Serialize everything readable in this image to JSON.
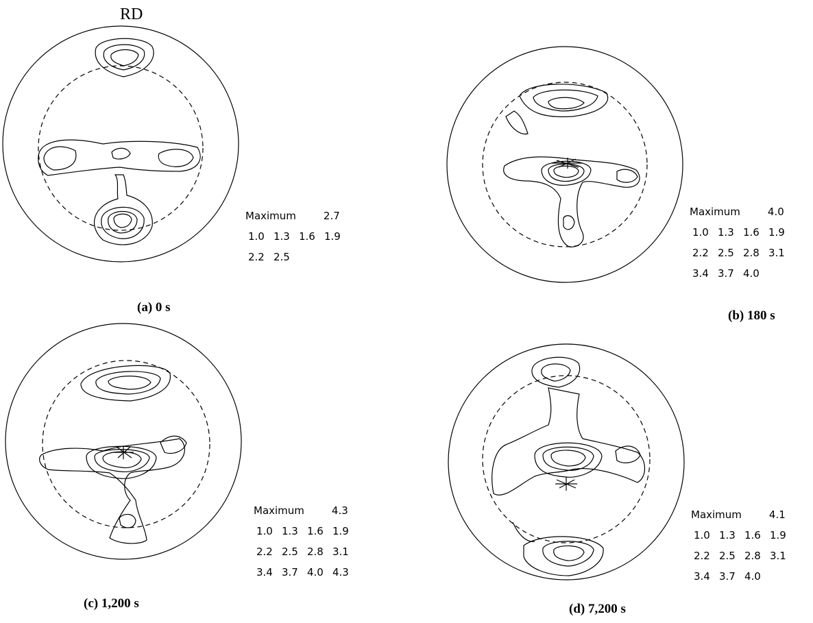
{
  "rd_label": "RD",
  "panels": [
    {
      "id": "a",
      "caption": "(a) 0 s",
      "maximum_label": "Maximum",
      "maximum_value": "2.7",
      "levels": [
        [
          "1.0",
          "1.3",
          "1.6",
          "1.9"
        ],
        [
          "2.2",
          "2.5"
        ]
      ]
    },
    {
      "id": "b",
      "caption": "(b) 180 s",
      "maximum_label": "Maximum",
      "maximum_value": "4.0",
      "levels": [
        [
          "1.0",
          "1.3",
          "1.6",
          "1.9"
        ],
        [
          "2.2",
          "2.5",
          "2.8",
          "3.1"
        ],
        [
          "3.4",
          "3.7",
          "4.0"
        ]
      ]
    },
    {
      "id": "c",
      "caption": "(c) 1,200 s",
      "maximum_label": "Maximum",
      "maximum_value": "4.3",
      "levels": [
        [
          "1.0",
          "1.3",
          "1.6",
          "1.9"
        ],
        [
          "2.2",
          "2.5",
          "2.8",
          "3.1"
        ],
        [
          "3.4",
          "3.7",
          "4.0",
          "4.3"
        ]
      ]
    },
    {
      "id": "d",
      "caption": "(d) 7,200 s",
      "maximum_label": "Maximum",
      "maximum_value": "4.1",
      "levels": [
        [
          "1.0",
          "1.3",
          "1.6",
          "1.9"
        ],
        [
          "2.2",
          "2.5",
          "2.8",
          "3.1"
        ],
        [
          "3.4",
          "3.7",
          "4.0"
        ]
      ]
    }
  ]
}
